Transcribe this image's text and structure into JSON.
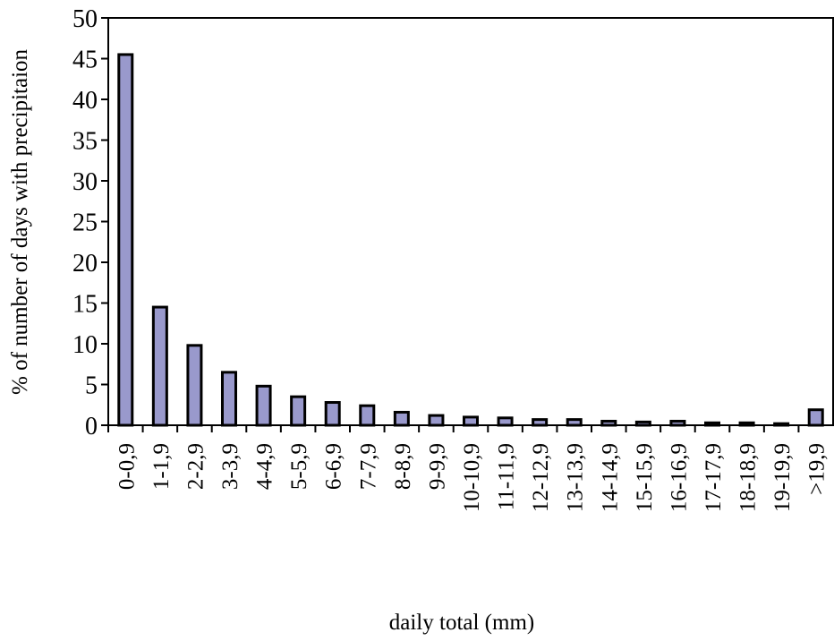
{
  "chart_data": {
    "type": "bar",
    "title": "",
    "xlabel": "daily total (mm)",
    "ylabel": "% of number of days with precipitaion",
    "ylim": [
      0,
      50
    ],
    "yticks": [
      "0",
      "5",
      "10",
      "15",
      "20",
      "25",
      "30",
      "35",
      "40",
      "45",
      "50"
    ],
    "grid": false,
    "legend": "none",
    "categories": [
      "0-0,9",
      "1-1,9",
      "2-2,9",
      "3-3,9",
      "4-4,9",
      "5-5,9",
      "6-6,9",
      "7-7,9",
      "8-8,9",
      "9-9,9",
      "10-10,9",
      "11-11,9",
      "12-12,9",
      "13-13,9",
      "14-14,9",
      "15-15,9",
      "16-16,9",
      "17-17,9",
      "18-18,9",
      "19-19,9",
      ">19,9"
    ],
    "values": [
      45.5,
      14.5,
      9.8,
      6.5,
      4.8,
      3.5,
      2.8,
      2.4,
      1.6,
      1.2,
      1.0,
      0.9,
      0.7,
      0.7,
      0.5,
      0.4,
      0.5,
      0.3,
      0.3,
      0.2,
      1.9
    ],
    "colors": {
      "bar_fill": "#9999cc",
      "bar_stroke": "#000000",
      "axis": "#000000"
    }
  }
}
